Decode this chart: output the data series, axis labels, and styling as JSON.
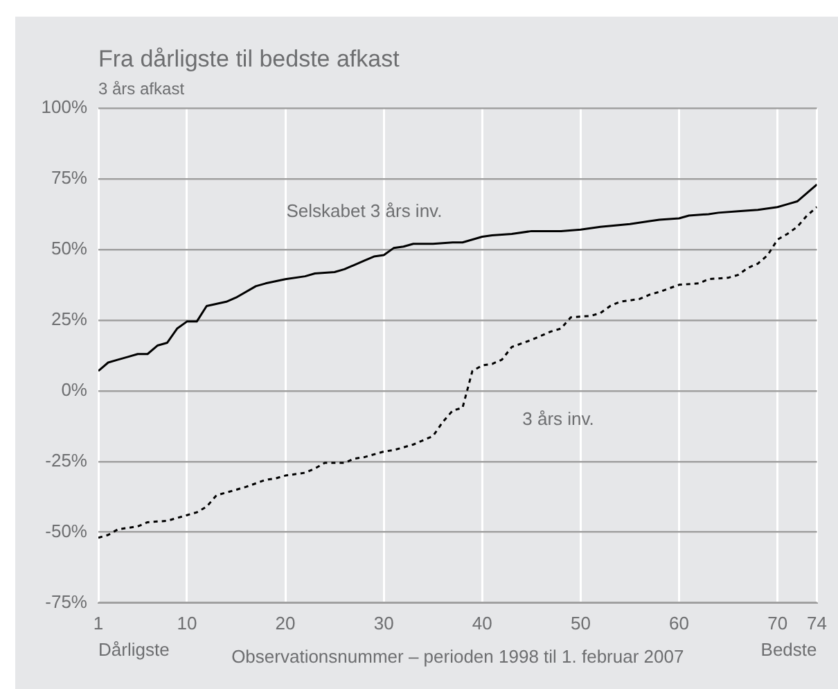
{
  "chart_data": {
    "type": "line",
    "title": "Fra dårligste til bedste afkast",
    "ylabel": "3 års afkast",
    "xlabel": "Observationsnummer – perioden 1998 til 1. februar 2007",
    "annotations": [
      "Dårligste",
      "Bedste"
    ],
    "xlim": [
      1,
      74
    ],
    "xticks": [
      1,
      10,
      20,
      30,
      40,
      50,
      60,
      70,
      74
    ],
    "ylim": [
      -75,
      100
    ],
    "yticks": [
      {
        "value": -75,
        "label": "-75%"
      },
      {
        "value": -50,
        "label": "-50%"
      },
      {
        "value": -25,
        "label": "-25%"
      },
      {
        "value": 0,
        "label": "0%"
      },
      {
        "value": 25,
        "label": "25%"
      },
      {
        "value": 50,
        "label": "50%"
      },
      {
        "value": 75,
        "label": "75%"
      },
      {
        "value": 100,
        "label": "100%"
      }
    ],
    "grid": true,
    "legend": false,
    "marker": "none",
    "series": [
      {
        "name": "Selskabet 3 års inv.",
        "color": "#000000",
        "line_style": "solid",
        "x": [
          1,
          2,
          3,
          4,
          5,
          6,
          7,
          8,
          9,
          10,
          11,
          12,
          14,
          15,
          17,
          18,
          20,
          22,
          23,
          25,
          26,
          28,
          29,
          30,
          31,
          32,
          33,
          35,
          37,
          38,
          40,
          41,
          43,
          45,
          48,
          50,
          52,
          55,
          57,
          58,
          60,
          61,
          63,
          64,
          66,
          68,
          70,
          71,
          72,
          73,
          74
        ],
        "values": [
          7,
          10,
          11,
          12,
          13,
          13,
          16,
          17,
          22,
          24.5,
          24.5,
          30,
          31.5,
          33,
          37,
          38,
          39.5,
          40.5,
          41.5,
          42,
          43,
          46,
          47.5,
          48,
          50.5,
          51,
          52,
          52,
          52.5,
          52.5,
          54.5,
          55,
          55.5,
          56.5,
          56.5,
          57,
          58,
          59,
          60,
          60.5,
          61,
          62,
          62.5,
          63,
          63.5,
          64,
          65,
          66,
          67,
          70,
          73
        ]
      },
      {
        "name": "3 års inv.",
        "color": "#000000",
        "line_style": "dashed",
        "x": [
          1,
          2,
          3,
          4,
          5,
          6,
          8,
          9,
          10,
          11,
          12,
          13,
          14,
          16,
          18,
          19,
          20,
          22,
          23,
          24,
          26,
          27,
          28,
          30,
          31,
          33,
          35,
          36,
          37,
          38,
          39,
          40,
          41,
          42,
          43,
          45,
          47,
          48,
          49,
          51,
          52,
          53,
          54,
          56,
          57,
          58,
          60,
          62,
          63,
          65,
          66,
          67,
          68,
          69,
          70,
          71,
          72,
          73,
          74
        ],
        "values": [
          -52,
          -51,
          -49,
          -48.5,
          -48,
          -46.5,
          -46,
          -45,
          -44,
          -43,
          -41,
          -37,
          -36,
          -34,
          -31.5,
          -31,
          -30,
          -29,
          -27.5,
          -25.5,
          -25.5,
          -24,
          -23.5,
          -21.5,
          -21,
          -19,
          -16,
          -11,
          -7,
          -6,
          7,
          9,
          9.5,
          11,
          15.5,
          18,
          21,
          22,
          26,
          26.5,
          27.5,
          30,
          31.5,
          32.5,
          34,
          35,
          37.5,
          38,
          39.5,
          40,
          41,
          43.5,
          45,
          48,
          53.5,
          55.5,
          58,
          62,
          65
        ]
      }
    ]
  }
}
